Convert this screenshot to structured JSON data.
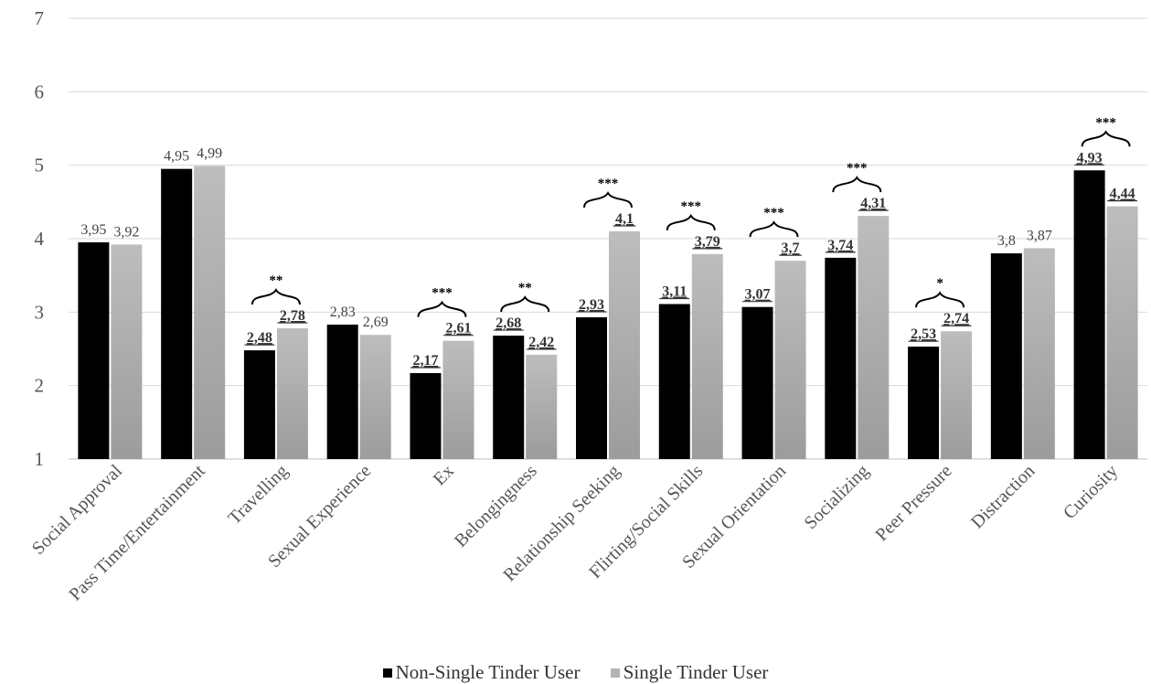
{
  "chart_data": {
    "type": "bar",
    "title": "",
    "xlabel": "",
    "ylabel": "",
    "ylim": [
      1,
      7
    ],
    "yticks": [
      "1",
      "2",
      "3",
      "4",
      "5",
      "6",
      "7"
    ],
    "grid": true,
    "legend_position": "bottom",
    "categories": [
      "Social Approval",
      "Pass Time/Entertainment",
      "Travelling",
      "Sexual Experience",
      "Ex",
      "Belongingness",
      "Relationship Seeking",
      "Flirting/Social Skills",
      "Sexual Orientation",
      "Socializing",
      "Peer Pressure",
      "Distraction",
      "Curiosity"
    ],
    "series": [
      {
        "name": "Non-Single Tinder User",
        "color": "#000000",
        "values": [
          3.95,
          4.95,
          2.48,
          2.83,
          2.17,
          2.68,
          2.93,
          3.11,
          3.07,
          3.74,
          2.53,
          3.8,
          4.93
        ],
        "labels": [
          "3,95",
          "4,95",
          "2,48",
          "2,83",
          "2,17",
          "2,68",
          "2,93",
          "3,11",
          "3,07",
          "3,74",
          "2,53",
          "3,8",
          "4,93"
        ]
      },
      {
        "name": "Single Tinder User",
        "color": "#b3b3b3",
        "values": [
          3.92,
          4.99,
          2.78,
          2.69,
          2.61,
          2.42,
          4.1,
          3.79,
          3.7,
          4.31,
          2.74,
          3.87,
          4.44
        ],
        "labels": [
          "3,92",
          "4,99",
          "2,78",
          "2,69",
          "2,61",
          "2,42",
          "4,1",
          "3,79",
          "3,7",
          "4,31",
          "2,74",
          "3,87",
          "4,44"
        ]
      }
    ],
    "significance": [
      "",
      "",
      "**",
      "",
      "***",
      "**",
      "***",
      "***",
      "***",
      "***",
      "*",
      "",
      "***"
    ],
    "emphasized_labels": [
      false,
      false,
      true,
      false,
      true,
      true,
      true,
      true,
      true,
      true,
      true,
      false,
      true
    ]
  }
}
